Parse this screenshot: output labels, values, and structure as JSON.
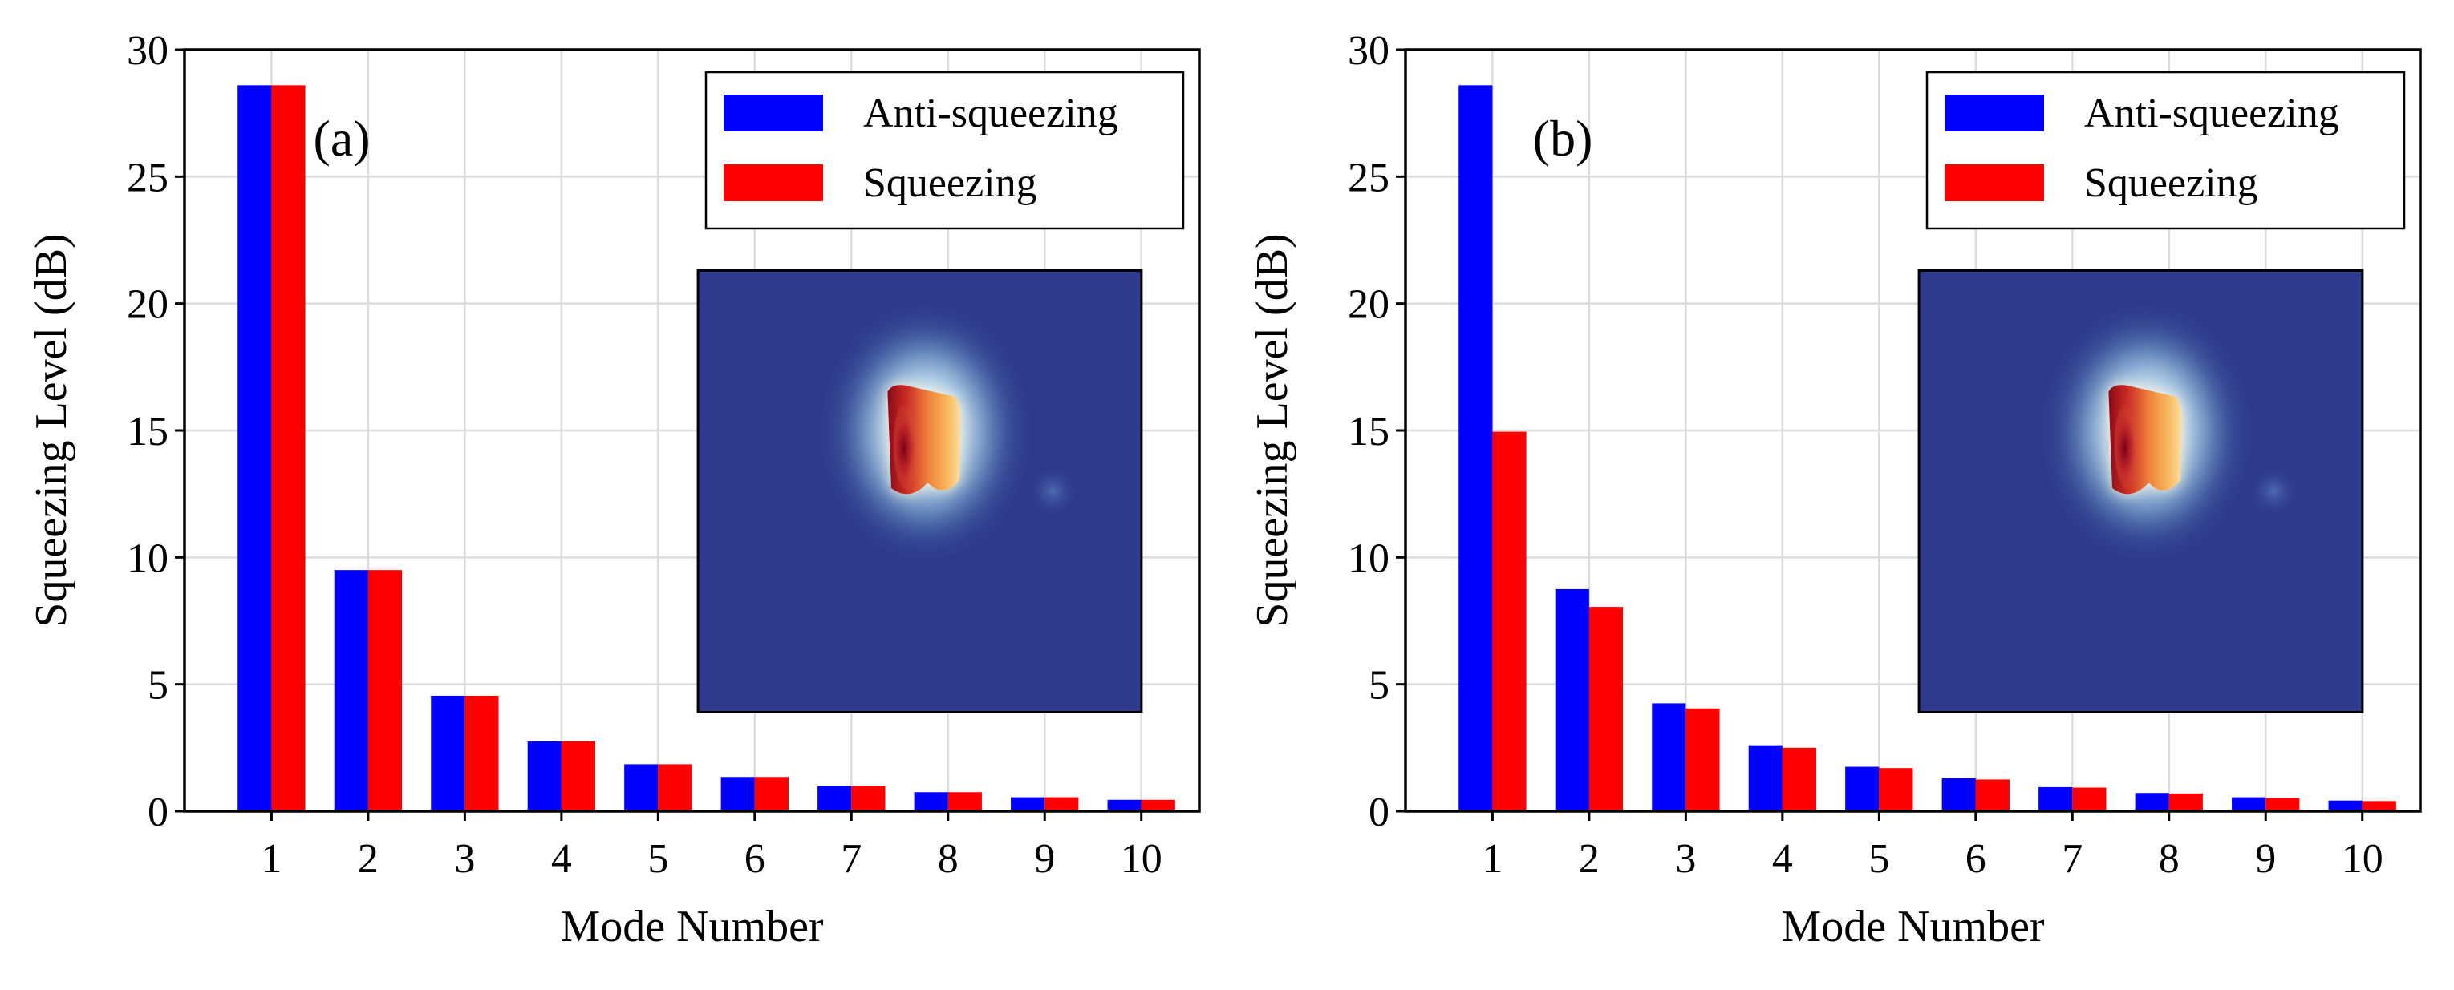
{
  "chart_data": [
    {
      "type": "bar",
      "panel_label": "(a)",
      "xlabel": "Mode Number",
      "ylabel": "Squeezing Level (dB)",
      "ylim": [
        0,
        30
      ],
      "yticks": [
        0,
        5,
        10,
        15,
        20,
        25,
        30
      ],
      "categories": [
        "1",
        "2",
        "3",
        "4",
        "5",
        "6",
        "7",
        "8",
        "9",
        "10"
      ],
      "grid": true,
      "legend_position": "top-right",
      "inset": "heatmap-image",
      "series": [
        {
          "name": "Anti-squeezing",
          "color": "#0000ff",
          "values": [
            28.6,
            9.5,
            4.55,
            2.75,
            1.85,
            1.35,
            1.0,
            0.75,
            0.55,
            0.45
          ]
        },
        {
          "name": "Squeezing",
          "color": "#ff0000",
          "values": [
            28.6,
            9.5,
            4.55,
            2.75,
            1.85,
            1.35,
            1.0,
            0.75,
            0.55,
            0.45
          ]
        }
      ]
    },
    {
      "type": "bar",
      "panel_label": "(b)",
      "xlabel": "Mode Number",
      "ylabel": "Squeezing Level (dB)",
      "ylim": [
        0,
        30
      ],
      "yticks": [
        0,
        5,
        10,
        15,
        20,
        25,
        30
      ],
      "categories": [
        "1",
        "2",
        "3",
        "4",
        "5",
        "6",
        "7",
        "8",
        "9",
        "10"
      ],
      "grid": true,
      "legend_position": "top-right",
      "inset": "heatmap-image",
      "series": [
        {
          "name": "Anti-squeezing",
          "color": "#0000ff",
          "values": [
            28.6,
            8.75,
            4.25,
            2.6,
            1.75,
            1.3,
            0.95,
            0.72,
            0.55,
            0.42
          ]
        },
        {
          "name": "Squeezing",
          "color": "#ff0000",
          "values": [
            14.95,
            8.05,
            4.05,
            2.5,
            1.7,
            1.25,
            0.93,
            0.7,
            0.52,
            0.4
          ]
        }
      ]
    }
  ]
}
